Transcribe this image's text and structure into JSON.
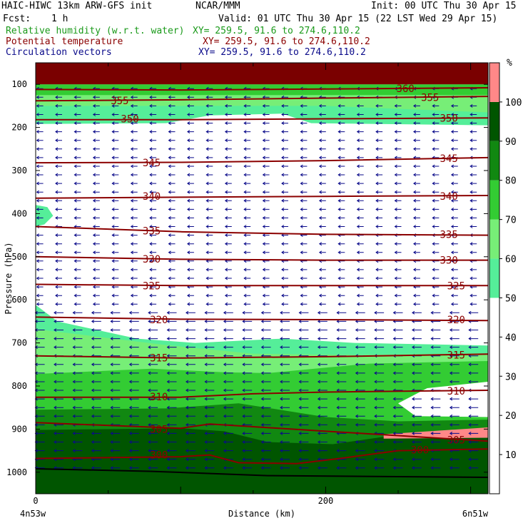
{
  "header": {
    "title_left": "HAIC-HIWC 13km ARW-GFS init",
    "title_mid": "NCAR/MMM",
    "init": "Init: 00 UTC Thu 30 Apr 15",
    "fcst_label": "Fcst:",
    "fcst_value": "1 h",
    "valid": "Valid: 01 UTC Thu 30 Apr 15 (22 LST Wed 29 Apr 15)",
    "fields": [
      {
        "label": "Relative humidity (w.r.t. water)",
        "xy": "XY= 259.5, 91.6 to 274.6,110.2",
        "color": "#1a9a1a"
      },
      {
        "label": "Potential temperature",
        "xy": "XY= 259.5, 91.6 to 274.6,110.2",
        "color": "#8b0000"
      },
      {
        "label": "Circulation vectors",
        "xy": "XY= 259.5, 91.6 to 274.6,110.2",
        "color": "#0a0a8a"
      }
    ]
  },
  "colors": {
    "rh_fill": {
      "50-60": "#55ee99",
      "60-70": "#77ee77",
      "70-80": "#33cc33",
      "80-90": "#118811",
      "90-100": "#005500",
      "100+": "#ff8888"
    },
    "theta_line": "#8b0000",
    "vector": "#0a0a8a"
  },
  "chart_data": {
    "type": "contour",
    "ylabel": "Pressure (hPa)",
    "xlabel": "Distance (km)",
    "x_left_label": "4n53w",
    "x_right_label": "6n51w",
    "yticks": [
      "100",
      "200",
      "300",
      "400",
      "500",
      "600",
      "700",
      "800",
      "900",
      "1000"
    ],
    "yrange": [
      50,
      1050
    ],
    "xticks": [
      "0",
      "200"
    ],
    "xrange": [
      0,
      312
    ],
    "colorbar": {
      "unit": "%",
      "labels": [
        "10",
        "20",
        "30",
        "40",
        "50",
        "60",
        "70",
        "80",
        "90",
        "100"
      ],
      "bands": [
        {
          "from": 0,
          "to": 50,
          "color": "#ffffff"
        },
        {
          "from": 50,
          "to": 60,
          "color": "#55ee99"
        },
        {
          "from": 60,
          "to": 70,
          "color": "#77ee77"
        },
        {
          "from": 70,
          "to": 80,
          "color": "#33cc33"
        },
        {
          "from": 80,
          "to": 90,
          "color": "#118811"
        },
        {
          "from": 90,
          "to": 100,
          "color": "#005500"
        },
        {
          "from": 100,
          "to": 110,
          "color": "#ff8888"
        }
      ]
    },
    "theta_contours": [
      {
        "value": "360",
        "label_points": [
          [
            255,
            110
          ]
        ],
        "points": [
          [
            0,
            112
          ],
          [
            100,
            113
          ],
          [
            200,
            111
          ],
          [
            312,
            108
          ]
        ]
      },
      {
        "value": "355",
        "label_points": [
          [
            58,
            138
          ],
          [
            272,
            130
          ]
        ],
        "points": [
          [
            0,
            138
          ],
          [
            100,
            136
          ],
          [
            200,
            132
          ],
          [
            312,
            128
          ]
        ]
      },
      {
        "value": "350",
        "label_points": [
          [
            65,
            180
          ],
          [
            285,
            178
          ]
        ],
        "points": [
          [
            0,
            182
          ],
          [
            100,
            182
          ],
          [
            200,
            180
          ],
          [
            312,
            178
          ]
        ]
      },
      {
        "value": "345",
        "label_points": [
          [
            80,
            282
          ],
          [
            285,
            272
          ]
        ],
        "points": [
          [
            0,
            282
          ],
          [
            100,
            281
          ],
          [
            200,
            277
          ],
          [
            312,
            270
          ]
        ]
      },
      {
        "value": "340",
        "label_points": [
          [
            80,
            360
          ],
          [
            285,
            360
          ]
        ],
        "points": [
          [
            0,
            364
          ],
          [
            100,
            362
          ],
          [
            200,
            360
          ],
          [
            312,
            358
          ]
        ]
      },
      {
        "value": "335",
        "label_points": [
          [
            80,
            440
          ],
          [
            285,
            448
          ]
        ],
        "points": [
          [
            0,
            430
          ],
          [
            100,
            442
          ],
          [
            200,
            448
          ],
          [
            312,
            450
          ]
        ]
      },
      {
        "value": "330",
        "label_points": [
          [
            80,
            505
          ],
          [
            285,
            508
          ]
        ],
        "points": [
          [
            0,
            500
          ],
          [
            100,
            506
          ],
          [
            200,
            508
          ],
          [
            312,
            508
          ]
        ]
      },
      {
        "value": "325",
        "label_points": [
          [
            80,
            567
          ],
          [
            290,
            567
          ]
        ],
        "points": [
          [
            0,
            564
          ],
          [
            100,
            567
          ],
          [
            200,
            567
          ],
          [
            312,
            567
          ]
        ]
      },
      {
        "value": "320",
        "label_points": [
          [
            85,
            646
          ],
          [
            290,
            646
          ]
        ],
        "points": [
          [
            0,
            640
          ],
          [
            100,
            645
          ],
          [
            200,
            646
          ],
          [
            312,
            648
          ]
        ]
      },
      {
        "value": "315",
        "label_points": [
          [
            85,
            735
          ],
          [
            290,
            728
          ]
        ],
        "points": [
          [
            0,
            730
          ],
          [
            100,
            735
          ],
          [
            200,
            732
          ],
          [
            312,
            726
          ]
        ]
      },
      {
        "value": "310",
        "label_points": [
          [
            85,
            825
          ],
          [
            290,
            812
          ]
        ],
        "points": [
          [
            0,
            826
          ],
          [
            100,
            826
          ],
          [
            150,
            818
          ],
          [
            200,
            814
          ],
          [
            312,
            810
          ]
        ]
      },
      {
        "value": "305",
        "label_points": [
          [
            85,
            900
          ],
          [
            290,
            925
          ]
        ],
        "points": [
          [
            0,
            885
          ],
          [
            100,
            898
          ],
          [
            120,
            888
          ],
          [
            200,
            905
          ],
          [
            250,
            915
          ],
          [
            312,
            928
          ]
        ]
      },
      {
        "value": "300",
        "label_points": [
          [
            85,
            960
          ],
          [
            265,
            948
          ]
        ],
        "points": [
          [
            0,
            968
          ],
          [
            100,
            964
          ],
          [
            120,
            960
          ],
          [
            140,
            978
          ],
          [
            180,
            980
          ],
          [
            210,
            968
          ],
          [
            250,
            950
          ],
          [
            312,
            946
          ]
        ]
      }
    ]
  }
}
